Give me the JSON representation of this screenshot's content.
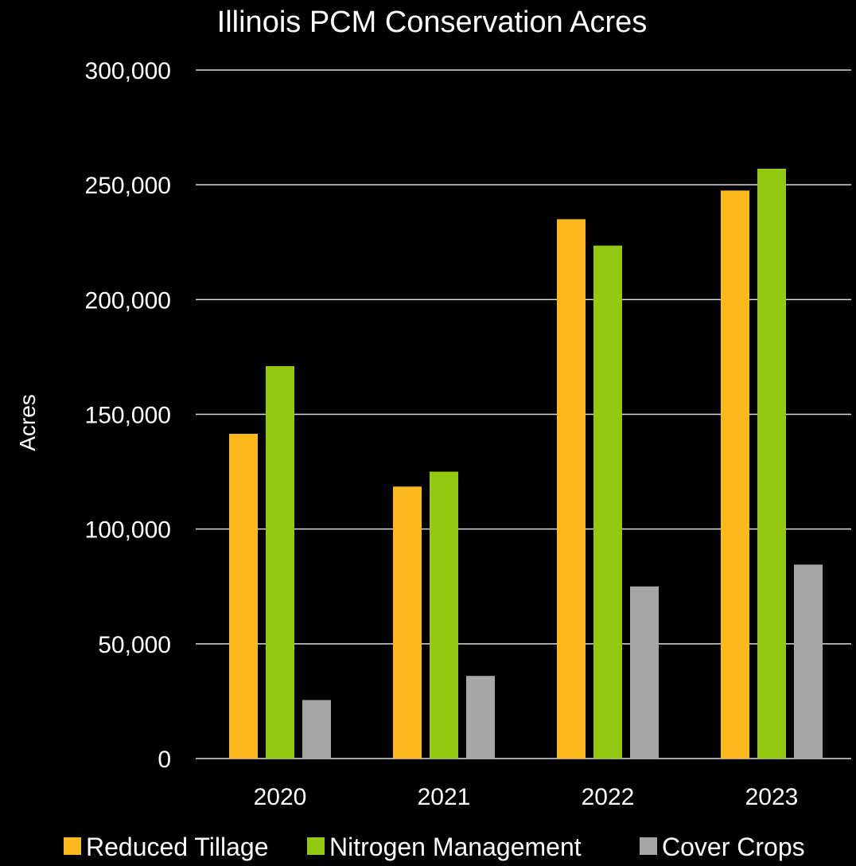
{
  "chart_data": {
    "type": "bar",
    "title": "Illinois PCM Conservation Acres",
    "xlabel": "",
    "ylabel": "Acres",
    "categories": [
      "2020",
      "2021",
      "2022",
      "2023"
    ],
    "series": [
      {
        "name": "Reduced Tillage",
        "color": "#fbb91b",
        "values": [
          141500,
          118500,
          235000,
          247500
        ]
      },
      {
        "name": "Nitrogen Management",
        "color": "#94c912",
        "values": [
          171000,
          125000,
          223500,
          257000
        ]
      },
      {
        "name": "Cover Crops",
        "color": "#a6a6a6",
        "values": [
          25500,
          36000,
          75000,
          84500
        ]
      }
    ],
    "ylim": [
      0,
      300000
    ],
    "yticks": [
      0,
      50000,
      100000,
      150000,
      200000,
      250000,
      300000
    ],
    "ytick_labels": [
      "0",
      "50,000",
      "100,000",
      "150,000",
      "200,000",
      "250,000",
      "300,000"
    ],
    "grid": true,
    "gridline_color": "#d9d9d9",
    "background": "#000000",
    "legend_position": "bottom"
  }
}
